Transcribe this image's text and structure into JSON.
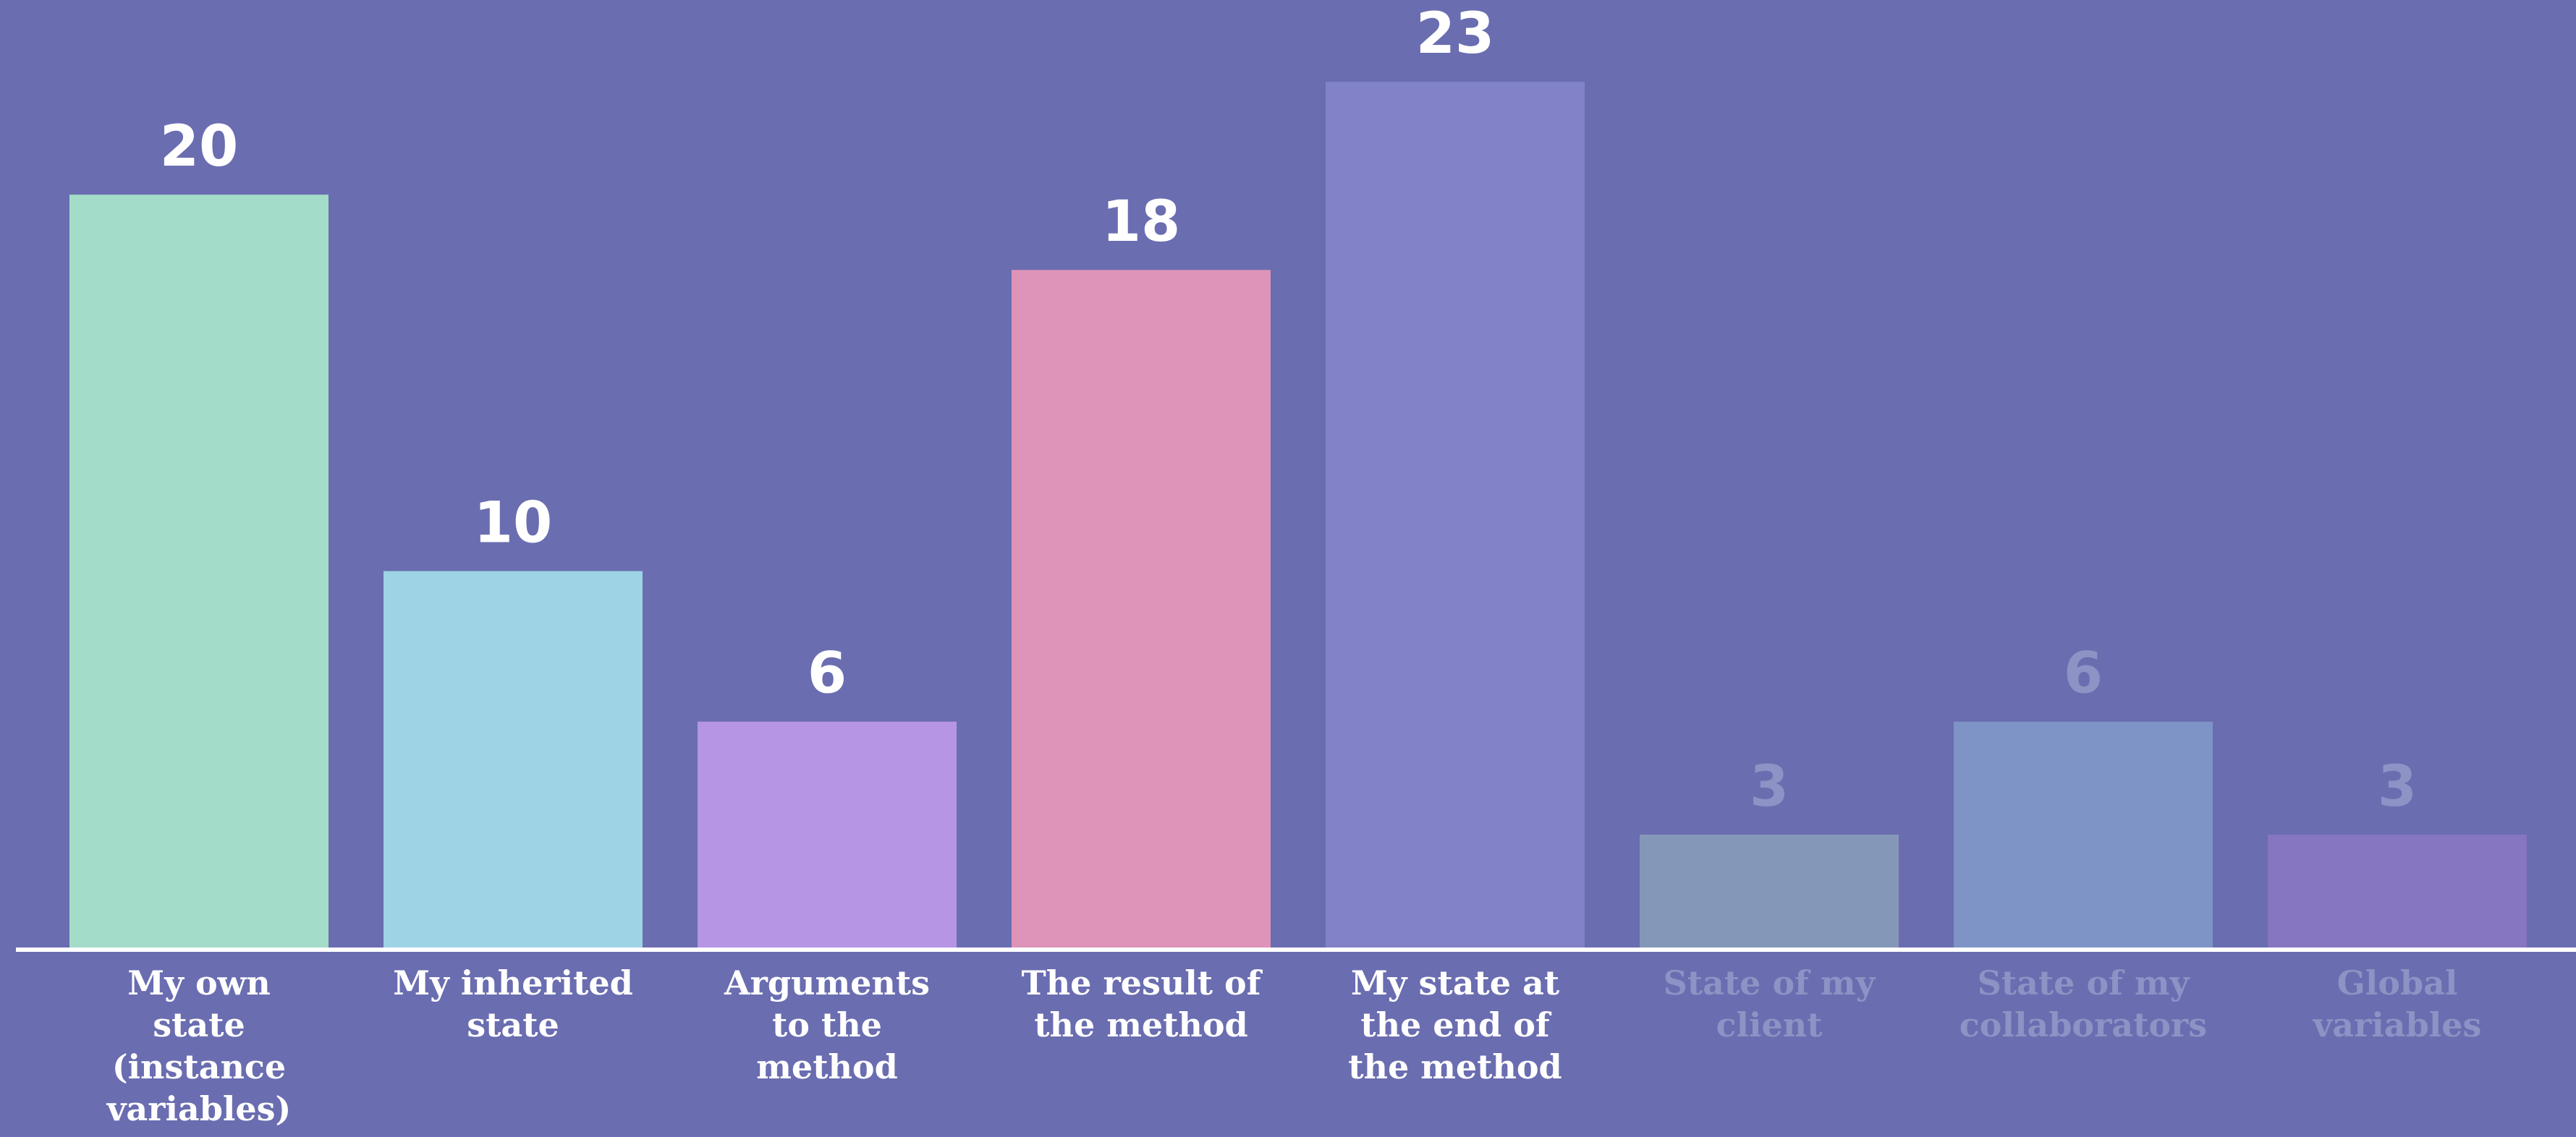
{
  "chart_data": {
    "type": "bar",
    "title": "",
    "xlabel": "",
    "ylabel": "",
    "ylim": [
      0,
      23
    ],
    "grid": false,
    "legend": "none",
    "categories": [
      [
        "My own",
        "state",
        "(instance",
        "variables)"
      ],
      [
        "My inherited",
        "state"
      ],
      [
        "Arguments",
        "to the",
        "method"
      ],
      [
        "The result of",
        "the method"
      ],
      [
        "My state at",
        "the end of",
        "the method"
      ],
      [
        "State of my",
        "client"
      ],
      [
        "State of my",
        "collaborators"
      ],
      [
        "Global",
        "variables"
      ]
    ],
    "values": [
      20,
      10,
      6,
      18,
      23,
      3,
      6,
      3
    ],
    "value_labels": [
      "20",
      "10",
      "6",
      "18",
      "23",
      "3",
      "6",
      "3"
    ],
    "bar_colors": [
      "#a3dcc8",
      "#9ed3e6",
      "#b595e4",
      "#de94b9",
      "#8282c9",
      "#8497b8",
      "#7e93c6",
      "#8675c1"
    ],
    "label_colors": [
      "#ffffff",
      "#ffffff",
      "#ffffff",
      "#ffffff",
      "#ffffff",
      "#8e92c4",
      "#8e92c4",
      "#8e92c4"
    ],
    "axis_color": "#ffffff",
    "background": "#6a6db0"
  }
}
